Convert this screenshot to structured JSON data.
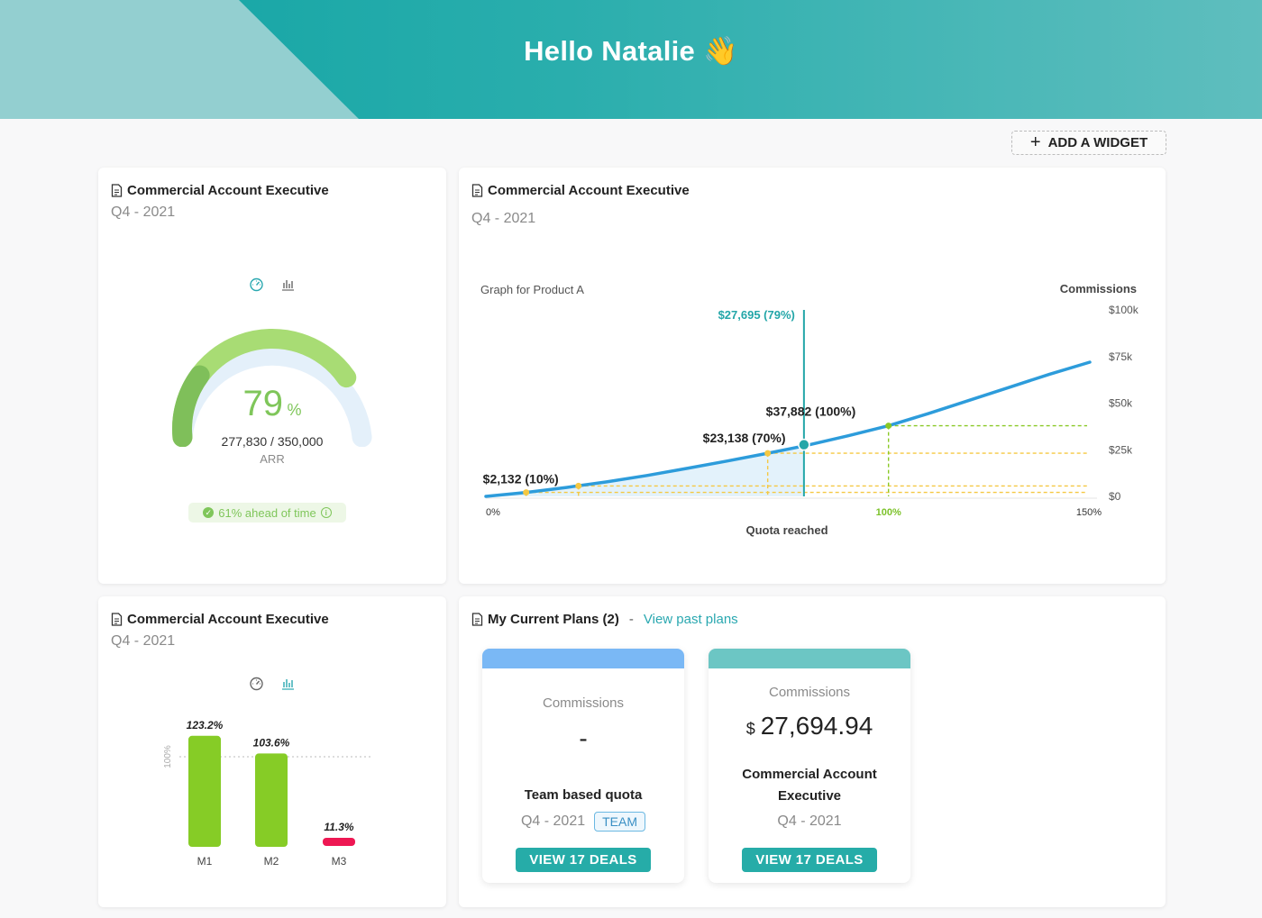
{
  "header": {
    "greeting": "Hello Natalie 👋"
  },
  "toolbar": {
    "add_widget_label": "ADD A WIDGET"
  },
  "gauge_card": {
    "title": "Commercial Account Executive",
    "period": "Q4 - 2021",
    "percent": "79",
    "percent_unit": "%",
    "attained": "277,830 / 350,000",
    "unit": "ARR",
    "ahead_label": "61% ahead of time",
    "progress_fraction": 0.79,
    "time_fraction": 0.61,
    "colors": {
      "achieved": "#a8dc74",
      "achieved_dark": "#7fbf5a",
      "remaining": "#e4f0fa"
    }
  },
  "commission_card": {
    "title": "Commercial Account Executive",
    "period": "Q4 - 2021"
  },
  "bar_card": {
    "title": "Commercial Account Executive",
    "period": "Q4 - 2021"
  },
  "plans_card": {
    "title": "My Current Plans (2)",
    "separator": "-",
    "past_link": "View past plans",
    "plans": [
      {
        "band_color": "#7ab8f5",
        "label": "Commissions",
        "amount": "-",
        "name": "Team based quota",
        "period": "Q4 - 2021",
        "badge": "TEAM",
        "button": "VIEW 17 DEALS"
      },
      {
        "band_color": "#6cc6c4",
        "label": "Commissions",
        "currency": "$",
        "amount": "27,694.94",
        "name": "Commercial Account Executive",
        "period": "Q4 - 2021",
        "button": "VIEW 17 DEALS"
      }
    ]
  },
  "chart_data": [
    {
      "type": "line",
      "title": "Graph for Product A",
      "xlabel": "Quota reached",
      "ylabel": "Commissions",
      "x_ticks": [
        "0%",
        "100%",
        "150%"
      ],
      "y_ticks": [
        "$0",
        "$25k",
        "$50k",
        "$75k",
        "$100k"
      ],
      "xlim": [
        0,
        150
      ],
      "ylim": [
        0,
        100000
      ],
      "series": [
        {
          "x": [
            0,
            10,
            20,
            30,
            40,
            50,
            60,
            70,
            80,
            90,
            100,
            110,
            120,
            130,
            140,
            150
          ],
          "y": [
            0,
            2132,
            4800,
            7800,
            11200,
            15000,
            19000,
            23138,
            27500,
            32500,
            37882,
            44500,
            51500,
            58500,
            65500,
            72000
          ]
        }
      ],
      "markers": [
        {
          "x": 10,
          "y": 2132,
          "label": "$2,132 (10%)",
          "color": "#f5c842"
        },
        {
          "x": 23,
          "y": 5600,
          "label": "",
          "color": "#f5c842"
        },
        {
          "x": 70,
          "y": 23138,
          "label": "$23,138 (70%)",
          "color": "#f5c842"
        },
        {
          "x": 100,
          "y": 37882,
          "label": "$37,882 (100%)",
          "color": "#8ac926"
        }
      ],
      "current": {
        "x": 79,
        "y": 27695,
        "label": "$27,695 (79%)",
        "color": "#23a6a8"
      },
      "line_color": "#2d9cdb",
      "fill_color": "#dceffa"
    },
    {
      "type": "bar",
      "categories": [
        "M1",
        "M2",
        "M3"
      ],
      "values": [
        123.2,
        103.6,
        11.3
      ],
      "labels": [
        "123.2%",
        "103.6%",
        "11.3%"
      ],
      "reference": {
        "value": 100,
        "label": "100%"
      },
      "ylim": [
        0,
        130
      ],
      "colors": [
        "#86cc26",
        "#86cc26",
        "#ee1753"
      ]
    }
  ]
}
